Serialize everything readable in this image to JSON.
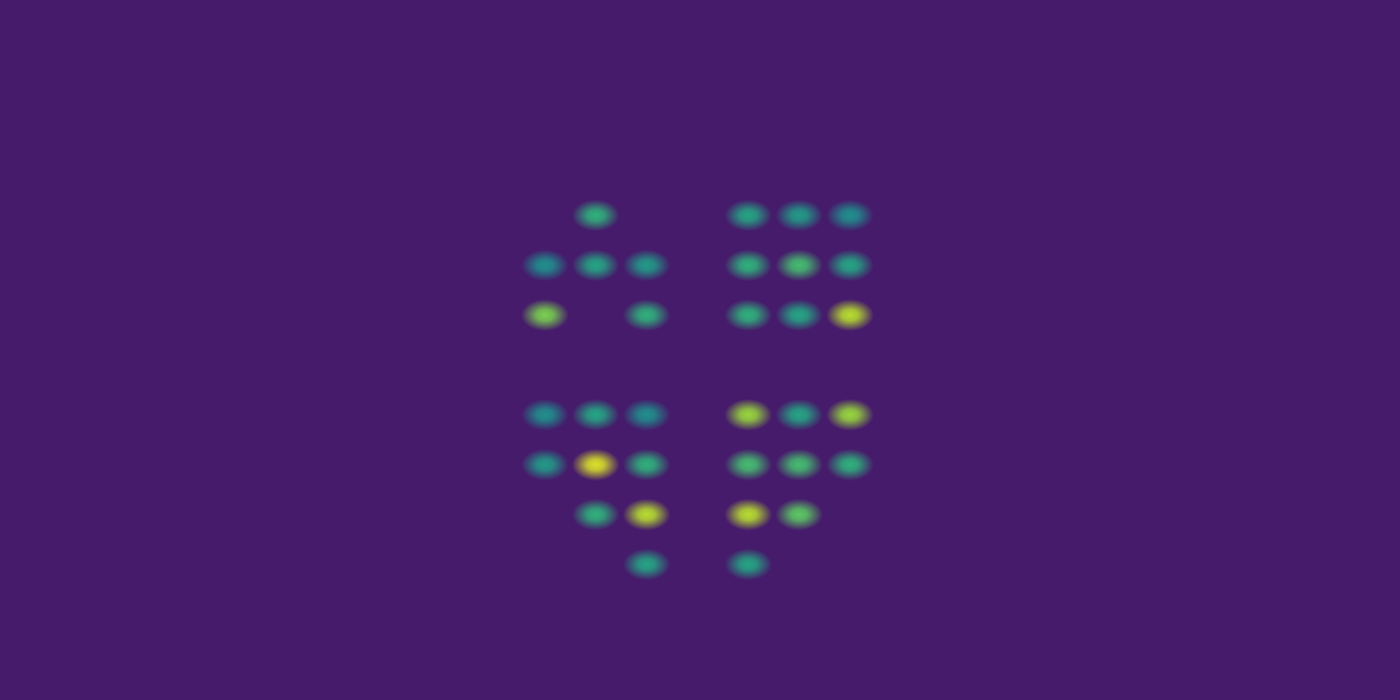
{
  "chart_data": {
    "type": "scatter",
    "x": [
      1,
      4,
      5,
      6,
      0,
      1,
      2,
      4,
      5,
      6,
      0,
      2,
      4,
      5,
      6,
      0,
      1,
      2,
      4,
      5,
      6,
      0,
      1,
      2,
      4,
      5,
      6,
      1,
      2,
      4,
      5,
      2,
      4
    ],
    "y": [
      0,
      0,
      0,
      0,
      -1,
      -1,
      -1,
      -1,
      -1,
      -1,
      -2,
      -2,
      -2,
      -2,
      -2,
      -4,
      -4,
      -4,
      -4,
      -4,
      -4,
      -5,
      -5,
      -5,
      -5,
      -5,
      -5,
      -6,
      -6,
      -6,
      -6,
      -7,
      -7
    ],
    "values": [
      0.65,
      0.6,
      0.55,
      0.5,
      0.5,
      0.6,
      0.55,
      0.65,
      0.7,
      0.6,
      0.8,
      0.65,
      0.65,
      0.6,
      0.9,
      0.5,
      0.6,
      0.5,
      0.85,
      0.6,
      0.85,
      0.55,
      0.95,
      0.65,
      0.7,
      0.7,
      0.65,
      0.65,
      0.9,
      0.9,
      0.75,
      0.6,
      0.6
    ],
    "color_range": [
      0,
      1
    ],
    "color": "viridis",
    "xlim": [
      -10.4,
      16.5
    ],
    "ylim": [
      -9.4,
      4.0
    ],
    "tick_labels": false,
    "grid": false
  }
}
